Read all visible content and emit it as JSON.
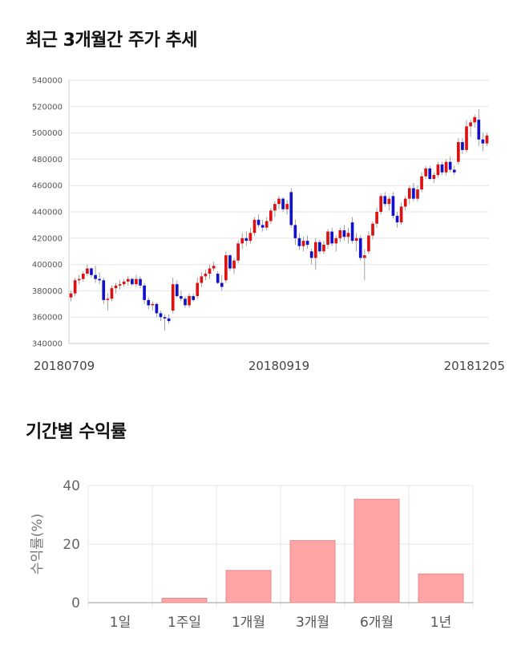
{
  "sections": {
    "price_title": "최근 3개월간 주가 추세",
    "return_title": "기간별 수익률"
  },
  "chart_data": [
    {
      "type": "candlestick",
      "title": "최근 3개월간 주가 추세",
      "ylim": [
        340000,
        540000
      ],
      "yticks": [
        340000,
        360000,
        380000,
        400000,
        420000,
        440000,
        460000,
        480000,
        500000,
        520000,
        540000
      ],
      "ytick_labels": [
        "340000",
        "360000",
        "380000",
        "400000",
        "420000",
        "440000",
        "460000",
        "480000",
        "500000",
        "520000",
        "540000"
      ],
      "xtick_labels": [
        "20180709",
        "20180919",
        "20181205"
      ],
      "xtick_index": [
        0,
        51,
        104
      ],
      "grid": true,
      "colors": {
        "up": "#dd1111",
        "down": "#1111cc",
        "grid": "#e6e6e6"
      },
      "series": [
        [
          375000,
          380000,
          372000,
          378000
        ],
        [
          378000,
          390000,
          376000,
          388000
        ],
        [
          388000,
          392000,
          385000,
          389000
        ],
        [
          389000,
          395000,
          387000,
          393000
        ],
        [
          393000,
          400000,
          391000,
          397000
        ],
        [
          397000,
          398000,
          390000,
          392000
        ],
        [
          392000,
          399000,
          386000,
          389000
        ],
        [
          389000,
          394000,
          385000,
          388000
        ],
        [
          388000,
          390000,
          370000,
          373000
        ],
        [
          373000,
          378000,
          365000,
          374000
        ],
        [
          374000,
          384000,
          372000,
          382000
        ],
        [
          382000,
          386000,
          378000,
          384000
        ],
        [
          384000,
          388000,
          381000,
          385000
        ],
        [
          385000,
          389000,
          383000,
          387000
        ],
        [
          387000,
          391000,
          384000,
          389000
        ],
        [
          389000,
          390000,
          384000,
          385000
        ],
        [
          385000,
          392000,
          383000,
          389000
        ],
        [
          389000,
          391000,
          382000,
          384000
        ],
        [
          384000,
          386000,
          370000,
          373000
        ],
        [
          373000,
          375000,
          366000,
          369000
        ],
        [
          369000,
          372000,
          365000,
          370000
        ],
        [
          370000,
          371000,
          360000,
          363000
        ],
        [
          363000,
          365000,
          357000,
          360000
        ],
        [
          360000,
          362000,
          350000,
          359000
        ],
        [
          359000,
          362000,
          355000,
          357000
        ],
        [
          365000,
          390000,
          363000,
          385000
        ],
        [
          385000,
          388000,
          375000,
          376000
        ],
        [
          376000,
          380000,
          372000,
          374000
        ],
        [
          374000,
          376000,
          367000,
          369000
        ],
        [
          369000,
          378000,
          367000,
          376000
        ],
        [
          376000,
          378000,
          372000,
          373000
        ],
        [
          376000,
          390000,
          374000,
          386000
        ],
        [
          386000,
          394000,
          383000,
          391000
        ],
        [
          391000,
          396000,
          388000,
          393000
        ],
        [
          393000,
          400000,
          389000,
          397000
        ],
        [
          397000,
          402000,
          395000,
          399000
        ],
        [
          393000,
          395000,
          385000,
          386000
        ],
        [
          386000,
          392000,
          380000,
          383000
        ],
        [
          388000,
          410000,
          386000,
          407000
        ],
        [
          407000,
          408000,
          395000,
          397000
        ],
        [
          397000,
          405000,
          393000,
          403000
        ],
        [
          403000,
          418000,
          401000,
          416000
        ],
        [
          416000,
          424000,
          412000,
          420000
        ],
        [
          420000,
          425000,
          414000,
          418000
        ],
        [
          418000,
          428000,
          416000,
          424000
        ],
        [
          424000,
          436000,
          422000,
          434000
        ],
        [
          434000,
          438000,
          428000,
          430000
        ],
        [
          430000,
          434000,
          425000,
          428000
        ],
        [
          428000,
          436000,
          426000,
          433000
        ],
        [
          433000,
          443000,
          431000,
          441000
        ],
        [
          441000,
          448000,
          436000,
          446000
        ],
        [
          446000,
          452000,
          442000,
          450000
        ],
        [
          450000,
          451000,
          440000,
          442000
        ],
        [
          442000,
          449000,
          438000,
          446000
        ],
        [
          455000,
          458000,
          428000,
          430000
        ],
        [
          430000,
          434000,
          415000,
          420000
        ],
        [
          420000,
          424000,
          411000,
          414000
        ],
        [
          414000,
          421000,
          410000,
          418000
        ],
        [
          418000,
          422000,
          412000,
          415000
        ],
        [
          410000,
          412000,
          400000,
          405000
        ],
        [
          405000,
          420000,
          396000,
          417000
        ],
        [
          417000,
          419000,
          408000,
          410000
        ],
        [
          410000,
          418000,
          408000,
          415000
        ],
        [
          415000,
          427000,
          412000,
          425000
        ],
        [
          425000,
          428000,
          414000,
          416000
        ],
        [
          416000,
          422000,
          410000,
          420000
        ],
        [
          420000,
          428000,
          417000,
          426000
        ],
        [
          426000,
          430000,
          418000,
          421000
        ],
        [
          421000,
          428000,
          416000,
          424000
        ],
        [
          432000,
          436000,
          416000,
          418000
        ],
        [
          418000,
          424000,
          410000,
          420000
        ],
        [
          420000,
          422000,
          403000,
          405000
        ],
        [
          405000,
          412000,
          388000,
          407000
        ],
        [
          410000,
          425000,
          408000,
          422000
        ],
        [
          422000,
          433000,
          419000,
          431000
        ],
        [
          431000,
          443000,
          428000,
          440000
        ],
        [
          440000,
          454000,
          438000,
          452000
        ],
        [
          452000,
          455000,
          444000,
          446000
        ],
        [
          446000,
          452000,
          441000,
          450000
        ],
        [
          452000,
          455000,
          435000,
          437000
        ],
        [
          437000,
          440000,
          428000,
          432000
        ],
        [
          432000,
          447000,
          430000,
          444000
        ],
        [
          444000,
          452000,
          441000,
          450000
        ],
        [
          450000,
          460000,
          446000,
          458000
        ],
        [
          458000,
          462000,
          448000,
          450000
        ],
        [
          450000,
          460000,
          448000,
          457000
        ],
        [
          457000,
          470000,
          455000,
          467000
        ],
        [
          467000,
          475000,
          465000,
          473000
        ],
        [
          473000,
          475000,
          464000,
          465000
        ],
        [
          465000,
          470000,
          462000,
          468000
        ],
        [
          468000,
          478000,
          466000,
          476000
        ],
        [
          476000,
          478000,
          468000,
          470000
        ],
        [
          470000,
          480000,
          468000,
          478000
        ],
        [
          478000,
          482000,
          470000,
          472000
        ],
        [
          472000,
          475000,
          468000,
          470000
        ],
        [
          478000,
          496000,
          476000,
          493000
        ],
        [
          493000,
          496000,
          484000,
          487000
        ],
        [
          487000,
          510000,
          485000,
          505000
        ],
        [
          505000,
          510000,
          497000,
          508000
        ],
        [
          508000,
          514000,
          504000,
          512000
        ],
        [
          510000,
          518000,
          490000,
          495000
        ],
        [
          495000,
          500000,
          486000,
          492000
        ],
        [
          492000,
          500000,
          490000,
          498000
        ]
      ]
    },
    {
      "type": "bar",
      "title": "기간별 수익률",
      "ylabel": "수익률(%)",
      "categories": [
        "1일",
        "1주일",
        "1개월",
        "3개월",
        "6개월",
        "1년"
      ],
      "values": [
        0,
        1.5,
        11,
        21.2,
        35.3,
        9.8
      ],
      "ylim": [
        0,
        40
      ],
      "yticks": [
        0,
        20,
        40
      ],
      "ytick_labels": [
        "0",
        "20",
        "40"
      ],
      "grid": true,
      "colors": {
        "bar": "#ffa5a5",
        "bar_edge": "#e58a8a",
        "grid": "#e6e6e6"
      }
    }
  ]
}
